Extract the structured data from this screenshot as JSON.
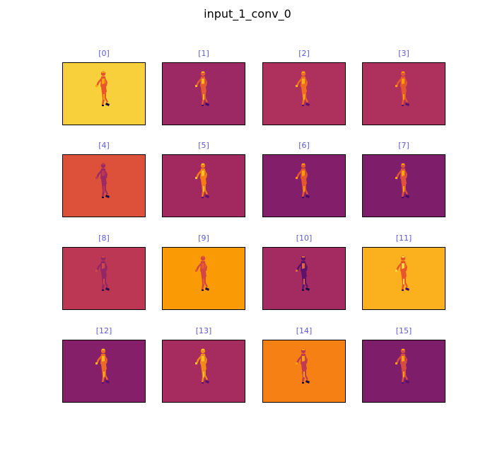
{
  "figure": {
    "title": "input_1_conv_0"
  },
  "panels": [
    {
      "label": "[0]",
      "bg": "#f7d03c",
      "fig": "#e8552a",
      "accent": "#fca50a",
      "dark": "#1b0c41"
    },
    {
      "label": "[1]",
      "bg": "#9c2964",
      "fig": "#e45a31",
      "accent": "#fbb61a",
      "dark": "#420a68"
    },
    {
      "label": "[2]",
      "bg": "#ae305c",
      "fig": "#ef6e21",
      "accent": "#fcb216",
      "dark": "#57106e"
    },
    {
      "label": "[3]",
      "bg": "#ae305c",
      "fig": "#e4582f",
      "accent": "#fb9b06",
      "dark": "#57106e"
    },
    {
      "label": "[4]",
      "bg": "#dd513a",
      "fig": "#9c2964",
      "accent": "#bc3754",
      "dark": "#1b0c41"
    },
    {
      "label": "[5]",
      "bg": "#a2295f",
      "fig": "#f57d15",
      "accent": "#fbc127",
      "dark": "#57106e"
    },
    {
      "label": "[6]",
      "bg": "#821e6a",
      "fig": "#e4582f",
      "accent": "#fb9b06",
      "dark": "#420a68"
    },
    {
      "label": "[7]",
      "bg": "#7e1e6b",
      "fig": "#e0523a",
      "accent": "#fca50a",
      "dark": "#420a68"
    },
    {
      "label": "[8]",
      "bg": "#bc3754",
      "fig": "#932667",
      "accent": "#d24644",
      "dark": "#2a0b4f"
    },
    {
      "label": "[9]",
      "bg": "#fa9b06",
      "fig": "#d24644",
      "accent": "#e45a31",
      "dark": "#1b0c41"
    },
    {
      "label": "[10]",
      "bg": "#a32b61",
      "fig": "#5d126e",
      "accent": "#e1663a",
      "dark": "#1b0c41"
    },
    {
      "label": "[11]",
      "bg": "#fbb01d",
      "fig": "#e8552a",
      "accent": "#f6d746",
      "dark": "#420a68"
    },
    {
      "label": "[12]",
      "bg": "#861f6a",
      "fig": "#ec6a25",
      "accent": "#fbb61a",
      "dark": "#57106e"
    },
    {
      "label": "[13]",
      "bg": "#a62b5e",
      "fig": "#f08a18",
      "accent": "#fbc127",
      "dark": "#57106e"
    },
    {
      "label": "[14]",
      "bg": "#f68014",
      "fig": "#c13a50",
      "accent": "#fca50a",
      "dark": "#1b0c41"
    },
    {
      "label": "[15]",
      "bg": "#7e1e6b",
      "fig": "#d74c40",
      "accent": "#f9a20e",
      "dark": "#57106e"
    }
  ]
}
